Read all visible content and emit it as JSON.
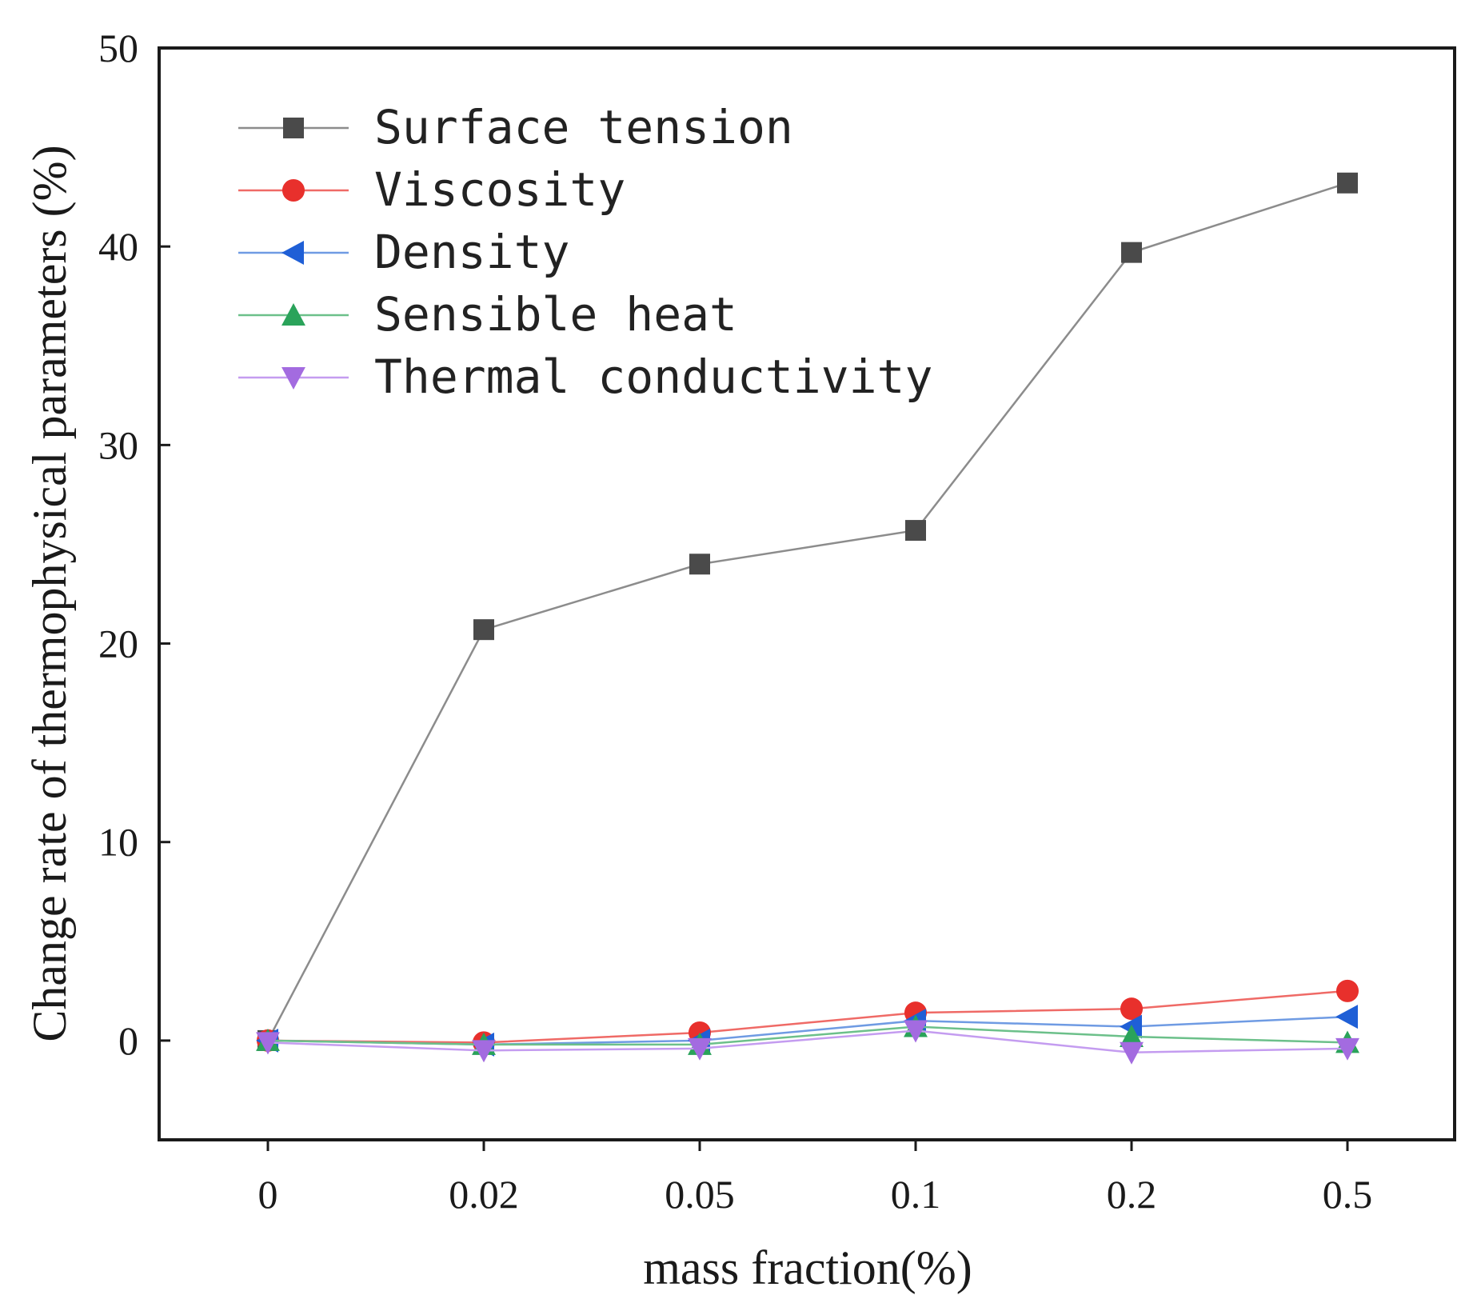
{
  "chart_data": {
    "type": "line",
    "title": "",
    "xlabel": "mass fraction(%)",
    "ylabel": "Change rate of thermophysical parameters (%)",
    "categories": [
      "0",
      "0.02",
      "0.05",
      "0.1",
      "0.2",
      "0.5"
    ],
    "ylim": [
      -5,
      50
    ],
    "yticks": [
      0,
      10,
      20,
      30,
      40,
      50
    ],
    "grid": false,
    "legend_position": "top-left",
    "series": [
      {
        "name": "Surface tension",
        "marker": "square",
        "color": "#4a4a4a",
        "line_color": "#8c8c8c",
        "values": [
          0,
          20.7,
          24.0,
          25.7,
          39.7,
          43.2
        ]
      },
      {
        "name": "Viscosity",
        "marker": "circle",
        "color": "#e8302c",
        "line_color": "#ef6a66",
        "values": [
          0,
          -0.1,
          0.4,
          1.4,
          1.6,
          2.5
        ]
      },
      {
        "name": "Density",
        "marker": "triangle-left",
        "color": "#1f5fd6",
        "line_color": "#6f9be3",
        "values": [
          0,
          -0.2,
          0.0,
          1.0,
          0.7,
          1.2
        ]
      },
      {
        "name": "Sensible heat",
        "marker": "triangle-up",
        "color": "#2aa35a",
        "line_color": "#6cc08a",
        "values": [
          0,
          -0.2,
          -0.2,
          0.7,
          0.2,
          -0.1
        ]
      },
      {
        "name": "Thermal conductivity",
        "marker": "triangle-down",
        "color": "#a36be0",
        "line_color": "#c49cf0",
        "values": [
          -0.1,
          -0.5,
          -0.4,
          0.5,
          -0.6,
          -0.4
        ]
      }
    ]
  }
}
